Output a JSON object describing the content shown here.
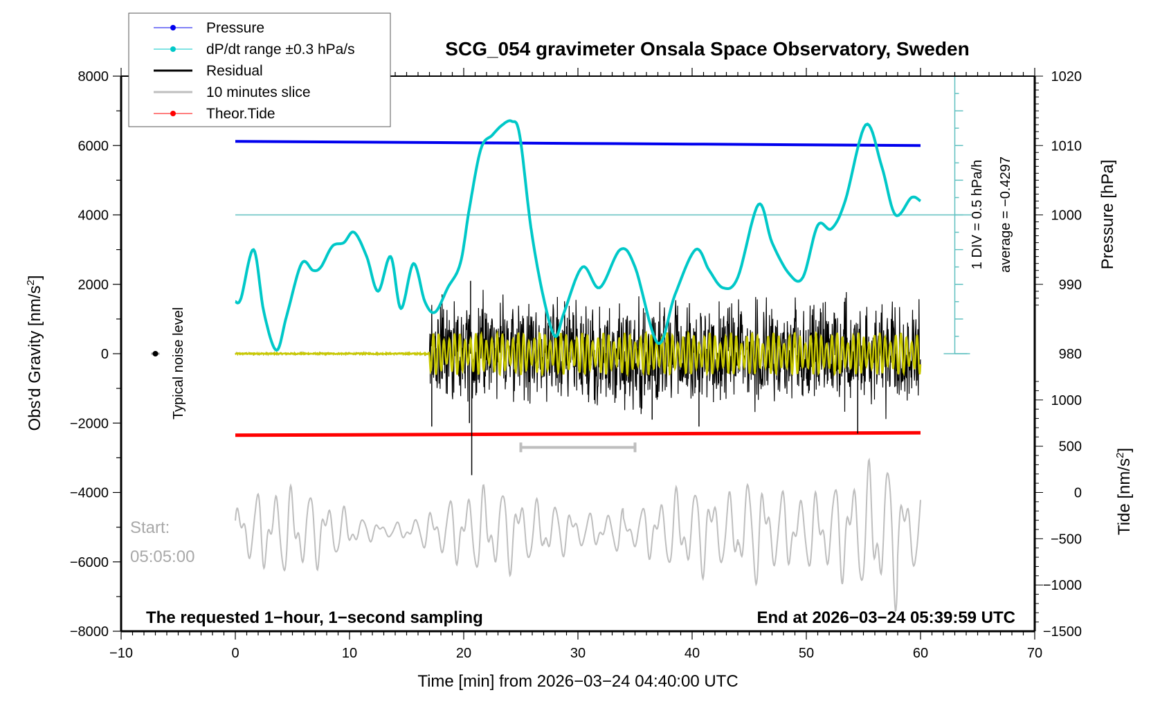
{
  "chart_data": {
    "type": "line",
    "title": "SCG_054 gravimeter Onsala Space Observatory, Sweden",
    "xlabel": "Time [min] from 2026−03−24 04:40:00 UTC",
    "ylabel_left": "Obs'd Gravity [nm/s",
    "ylabel_left_sup": "2",
    "ylabel_left_end": "]",
    "ylabel_right_top": "Pressure [hPa]",
    "ylabel_right_bottom": "Tide [nm/s",
    "ylabel_right_bottom_sup": "2",
    "ylabel_right_bottom_end": "]",
    "xlim": [
      -10,
      70
    ],
    "ylim": [
      -8000,
      8000
    ],
    "x_ticks": [
      "−10",
      "0",
      "10",
      "20",
      "30",
      "40",
      "50",
      "60",
      "70"
    ],
    "x_tick_values": [
      -10,
      0,
      10,
      20,
      30,
      40,
      50,
      60,
      70
    ],
    "y_ticks": [
      "8000",
      "6000",
      "4000",
      "2000",
      "0",
      "−2000",
      "−4000",
      "−6000",
      "−8000"
    ],
    "y_tick_values": [
      8000,
      6000,
      4000,
      2000,
      0,
      -2000,
      -4000,
      -6000,
      -8000
    ],
    "pressure_axis": {
      "ticks": [
        "1020",
        "1010",
        "1000",
        "990",
        "980"
      ],
      "tick_values": [
        1020,
        1010,
        1000,
        990,
        980
      ],
      "gravity_equiv_at_1000": 4000,
      "gravity_per_hPa": 200
    },
    "tide_axis": {
      "ticks": [
        "1000",
        "500",
        "0",
        "−500",
        "−1000",
        "−1500"
      ],
      "tick_values": [
        1000,
        500,
        0,
        -500,
        -1000,
        -1500
      ],
      "gravity_equiv_at_0": -4000,
      "gravity_per_unit": 2.667
    },
    "dpdt_scale": {
      "label_div": "1 DIV = 0.5 hPa/h",
      "label_average": "average = −0.4297",
      "baseline_gravity": 4000,
      "axis_x_min": 63
    },
    "legend": {
      "placement": "top-left",
      "entries": [
        {
          "label": "Pressure",
          "color": "#0000ee",
          "marker": true
        },
        {
          "label": "dP/dt range ±0.3 hPa/s",
          "color": "#00c8c8",
          "marker": true
        },
        {
          "label": "Residual",
          "color": "#000000",
          "marker": false
        },
        {
          "label": "10 minutes slice",
          "color": "#bebebe",
          "marker": false
        },
        {
          "label": "Theor.Tide",
          "color": "#ff0000",
          "marker": true
        }
      ]
    },
    "annotations": {
      "noise_label": "Typical noise level",
      "noise_point": {
        "x": -7,
        "y": 0
      },
      "start_label": "Start:",
      "start_time": "05:05:00",
      "bottom_left": "The requested 1−hour, 1−second sampling",
      "bottom_right": "End at 2026−03−24 05:39:59 UTC",
      "slice_bar": {
        "x_start": 25,
        "x_end": 35,
        "y": -2700
      }
    },
    "series": [
      {
        "name": "Pressure",
        "color": "#0000ee",
        "x": [
          0,
          10,
          20,
          30,
          40,
          50,
          60
        ],
        "y_hPa": [
          1010.6,
          1010.5,
          1010.4,
          1010.3,
          1010.2,
          1010.1,
          1010.0
        ]
      },
      {
        "name": "dP/dt",
        "color": "#00c8c8",
        "x": [
          0,
          0.5,
          1.6,
          2.5,
          3.6,
          4.5,
          5.8,
          6.8,
          7.5,
          8.5,
          9.5,
          10.4,
          11.5,
          12.5,
          13.6,
          14.5,
          15.6,
          16.6,
          17.5,
          18.6,
          19.7,
          20.5,
          21.5,
          22.5,
          23.4,
          24.2,
          24.9,
          25.9,
          27.0,
          28.0,
          28.8,
          30.4,
          31.9,
          33.7,
          35.0,
          37.0,
          38.5,
          40.3,
          41.5,
          42.7,
          44.0,
          45.8,
          47.0,
          48.5,
          49.7,
          51.0,
          52.2,
          53.4,
          55.2,
          56.6,
          57.8,
          59.2,
          60.0
        ],
        "y": [
          1500,
          1600,
          3000,
          1200,
          100,
          1100,
          2600,
          2400,
          2500,
          3100,
          3200,
          3500,
          2800,
          1800,
          2800,
          1300,
          2600,
          1500,
          1200,
          1900,
          2600,
          4200,
          5900,
          6300,
          6600,
          6700,
          6300,
          3600,
          1600,
          500,
          1200,
          2500,
          1900,
          3000,
          2500,
          300,
          1700,
          3000,
          2400,
          1900,
          2200,
          4300,
          3200,
          2300,
          2200,
          3700,
          3600,
          4400,
          6600,
          5400,
          4000,
          4500,
          4400
        ]
      },
      {
        "name": "Residual",
        "color": "#000000",
        "description": "quiet (~0) from 0 to 17 min, then noisy oscillations amplitude ~1000-2000 nm/s2 to 60 min",
        "quiet_until": 17,
        "amplitude": 1100,
        "spikes": [
          {
            "x": 17.2,
            "y": -2100
          },
          {
            "x": 20.5,
            "y": -2000
          },
          {
            "x": 20.7,
            "y": -3500
          },
          {
            "x": 20.6,
            "y": 2100
          },
          {
            "x": 36.5,
            "y": -1900
          },
          {
            "x": 40.6,
            "y": -2100
          },
          {
            "x": 54.5,
            "y": -2300
          }
        ]
      },
      {
        "name": "Filtered residual",
        "color": "#c8c800",
        "quiet_until": 17,
        "amplitude": 550
      },
      {
        "name": "Theor.Tide",
        "color": "#ff0000",
        "x": [
          0,
          60
        ],
        "y": [
          -2350,
          -2280
        ]
      },
      {
        "name": "10 minutes slice",
        "color": "#bebebe",
        "x_range": [
          0,
          60
        ],
        "center_gravity": -5100,
        "amplitude_range": [
          600,
          1900
        ]
      }
    ]
  }
}
